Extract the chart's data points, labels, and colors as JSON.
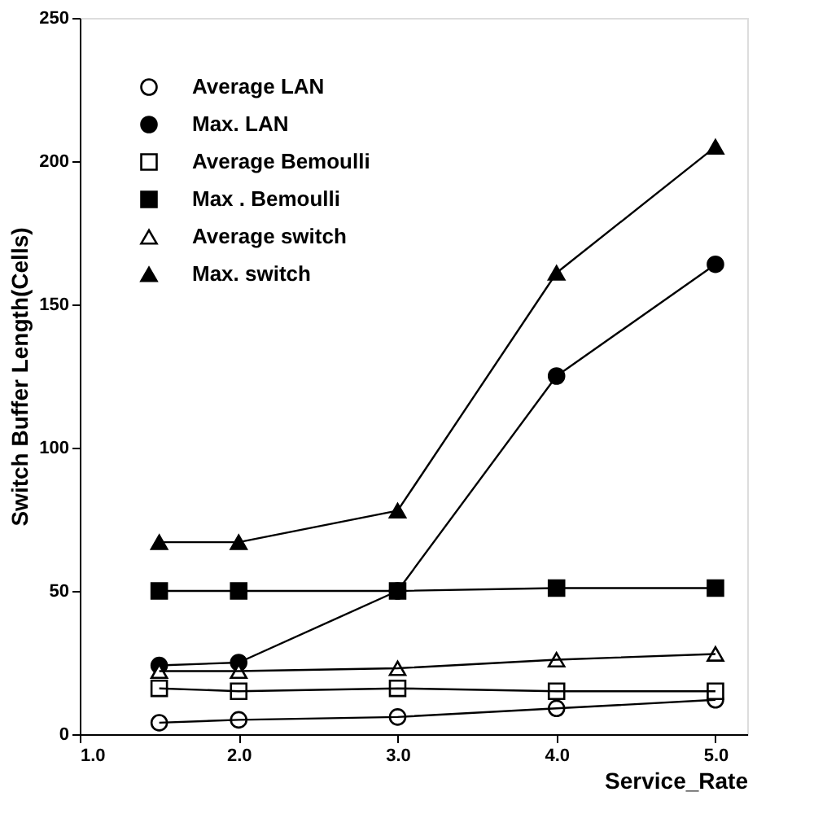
{
  "chart_data": {
    "type": "line",
    "xlabel": "Service_Rate",
    "ylabel": "Switch Buffer Length(Cells)",
    "x": [
      1.5,
      2.0,
      3.0,
      4.0,
      5.0
    ],
    "xlim": [
      1.0,
      5.2
    ],
    "ylim": [
      0,
      250
    ],
    "xticks": [
      {
        "value": 1,
        "label": "1.0"
      },
      {
        "value": 2,
        "label": "2.0"
      },
      {
        "value": 3,
        "label": "3.0"
      },
      {
        "value": 4,
        "label": "4.0"
      },
      {
        "value": 5,
        "label": "5.0"
      }
    ],
    "yticks": [
      0,
      50,
      100,
      150,
      200,
      250
    ],
    "grid": false,
    "legend": "top left",
    "line_style": "solid",
    "series": [
      {
        "name": "Average LAN",
        "color": "#000000",
        "marker": "circle",
        "values": [
          4,
          5,
          6,
          9,
          12
        ]
      },
      {
        "name": "Max. LAN",
        "color": "#000000",
        "marker": "circle",
        "values": [
          24,
          25,
          50,
          125,
          164
        ]
      },
      {
        "name": "Average Bemoulli",
        "color": "#000000",
        "marker": "square",
        "values": [
          16,
          15,
          16,
          15,
          15
        ]
      },
      {
        "name": "Max . Bemoulli",
        "color": "#000000",
        "marker": "square",
        "values": [
          50,
          50,
          50,
          51,
          51
        ]
      },
      {
        "name": "Average switch",
        "color": "#000000",
        "marker": "triangle",
        "values": [
          22,
          22,
          23,
          26,
          28
        ]
      },
      {
        "name": "Max. switch",
        "color": "#000000",
        "marker": "triangle",
        "values": [
          67,
          67,
          78,
          161,
          205
        ]
      }
    ]
  }
}
